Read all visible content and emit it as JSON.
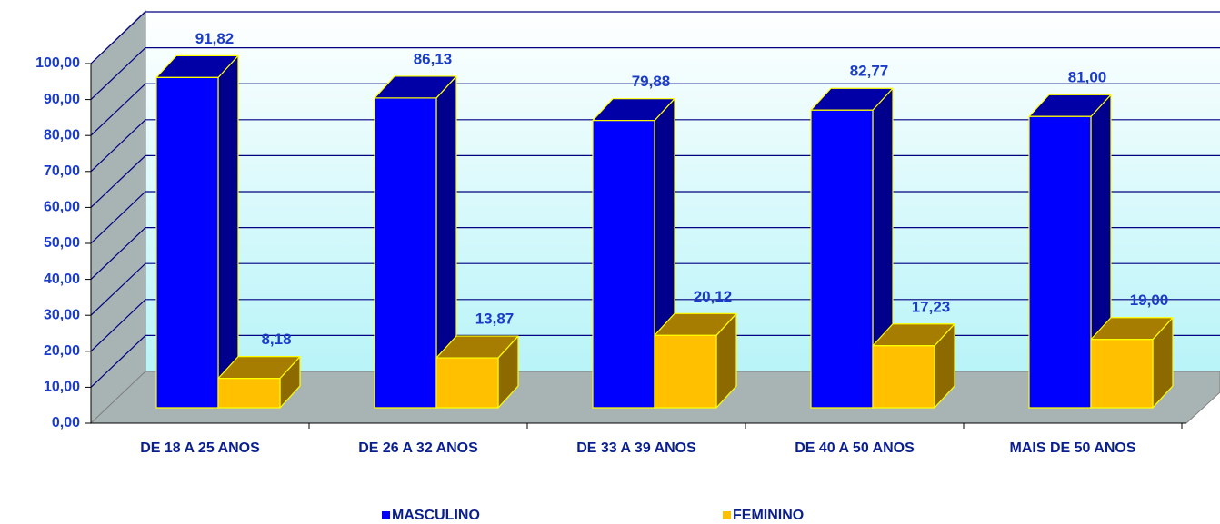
{
  "chart_data": {
    "type": "bar3d",
    "categories": [
      "DE 18 A 25 ANOS",
      "DE 26 A 32 ANOS",
      "DE 33 A 39 ANOS",
      "DE 40 A 50 ANOS",
      "MAIS DE 50 ANOS"
    ],
    "series": [
      {
        "name": "MASCULINO",
        "color": "#0000ff",
        "values": [
          91.82,
          86.13,
          79.88,
          82.77,
          81.0
        ],
        "value_labels": [
          "91,82",
          "86,13",
          "79,88",
          "82,77",
          "81,00"
        ]
      },
      {
        "name": "FEMININO",
        "color": "#ffc000",
        "values": [
          8.18,
          13.87,
          20.12,
          17.23,
          19.0
        ],
        "value_labels": [
          "8,18",
          "13,87",
          "20,12",
          "17,23",
          "19,00"
        ]
      }
    ],
    "ylim": [
      0,
      100
    ],
    "yticks": [
      {
        "value": 0,
        "label": "0,00"
      },
      {
        "value": 10,
        "label": "10,00"
      },
      {
        "value": 20,
        "label": "20,00"
      },
      {
        "value": 30,
        "label": "30,00"
      },
      {
        "value": 40,
        "label": "40,00"
      },
      {
        "value": 50,
        "label": "50,00"
      },
      {
        "value": 60,
        "label": "60,00"
      },
      {
        "value": 70,
        "label": "70,00"
      },
      {
        "value": 80,
        "label": "80,00"
      },
      {
        "value": 90,
        "label": "90,00"
      },
      {
        "value": 100,
        "label": "100,00"
      }
    ],
    "grid": true,
    "legend": "bottom"
  }
}
